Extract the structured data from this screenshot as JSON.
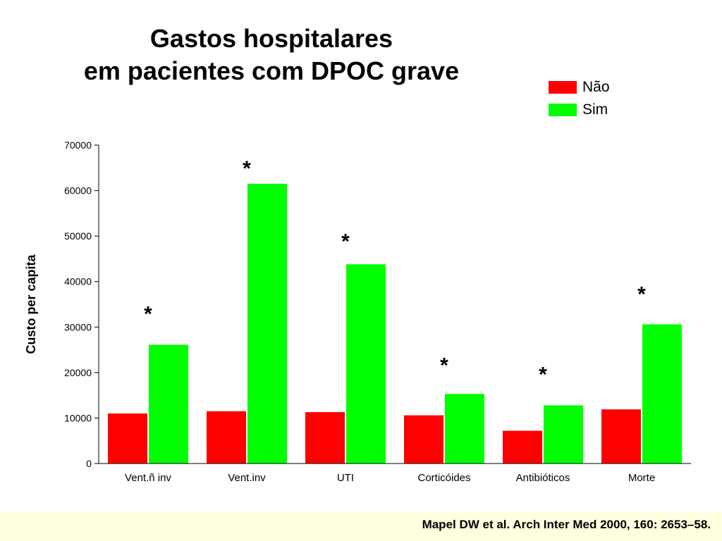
{
  "title_lines": [
    "Gastos hospitalares",
    "em pacientes com DPOC grave"
  ],
  "legend": [
    {
      "label": "Não",
      "color": "#ff0000"
    },
    {
      "label": "Sim",
      "color": "#00ff00"
    }
  ],
  "citation": "Mapel DW et al. Arch Inter Med 2000, 160: 2653–58.",
  "chart_data": {
    "type": "bar",
    "title": "Gastos hospitalares em pacientes com DPOC grave",
    "ylabel": "Custo per capita",
    "xlabel": "",
    "ylim": [
      0,
      70000
    ],
    "yticks": [
      0,
      10000,
      20000,
      30000,
      40000,
      50000,
      60000,
      70000
    ],
    "categories": [
      "Vent.ñ inv",
      "Vent.inv",
      "UTI",
      "Corticóides",
      "Antibióticos",
      "Morte"
    ],
    "series": [
      {
        "name": "Não",
        "color": "#ff0000",
        "values": [
          11000,
          11500,
          11300,
          10600,
          7200,
          11900
        ]
      },
      {
        "name": "Sim",
        "color": "#00ff00",
        "values": [
          26100,
          61500,
          43800,
          15300,
          12800,
          30600
        ]
      }
    ],
    "annotations": [
      {
        "category": "Vent.ñ inv",
        "text": "*",
        "y": 33500
      },
      {
        "category": "Vent.inv",
        "text": "*",
        "y": 65500
      },
      {
        "category": "UTI",
        "text": "*",
        "y": 49500
      },
      {
        "category": "Corticóides",
        "text": "*",
        "y": 22200
      },
      {
        "category": "Antibióticos",
        "text": "*",
        "y": 20200
      },
      {
        "category": "Morte",
        "text": "*",
        "y": 37900
      }
    ],
    "legend_position": "top-right",
    "grid": false
  }
}
